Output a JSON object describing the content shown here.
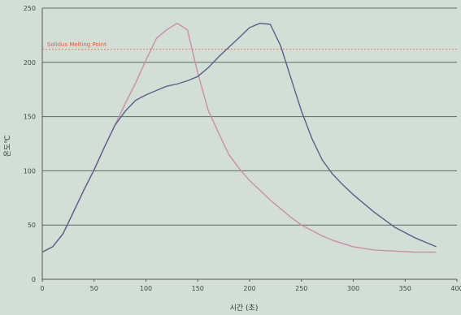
{
  "chart_data": {
    "type": "line",
    "xlabel": "시간 (초)",
    "ylabel": "온도℃",
    "xlim": [
      0,
      400
    ],
    "ylim": [
      0,
      250
    ],
    "xticks": [
      "0",
      "50",
      "100",
      "150",
      "200",
      "250",
      "300",
      "350",
      "400"
    ],
    "yticks": [
      "0",
      "50",
      "100",
      "150",
      "200",
      "250"
    ],
    "grid": "horizontal",
    "annotation": {
      "text": "Solidus Melting Point",
      "y": 212,
      "color": "#e05a3a"
    },
    "series": [
      {
        "color": "#c98fa8",
        "x": [
          0,
          10,
          20,
          30,
          40,
          50,
          60,
          70,
          80,
          90,
          100,
          110,
          120,
          130,
          140,
          150,
          160,
          170,
          180,
          190,
          200,
          210,
          220,
          230,
          240,
          250,
          260,
          270,
          280,
          290,
          300,
          320,
          340,
          360,
          380
        ],
        "y": [
          25,
          30,
          42,
          62,
          82,
          101,
          122,
          142,
          162,
          181,
          202,
          222,
          230,
          236,
          230,
          190,
          156,
          135,
          115,
          102,
          91,
          82,
          73,
          65,
          57,
          50,
          45,
          40,
          36,
          33,
          30,
          27,
          26,
          25,
          25
        ]
      },
      {
        "color": "#5a5f86",
        "x": [
          0,
          10,
          20,
          30,
          40,
          50,
          60,
          70,
          80,
          90,
          100,
          110,
          120,
          130,
          140,
          150,
          160,
          170,
          180,
          190,
          200,
          210,
          220,
          230,
          240,
          250,
          260,
          270,
          280,
          290,
          300,
          320,
          340,
          360,
          380
        ],
        "y": [
          25,
          30,
          42,
          62,
          82,
          101,
          122,
          142,
          155,
          165,
          170,
          174,
          178,
          180,
          183,
          187,
          195,
          205,
          214,
          223,
          232,
          236,
          235,
          215,
          185,
          155,
          130,
          110,
          97,
          87,
          78,
          62,
          48,
          38,
          30
        ]
      }
    ]
  }
}
